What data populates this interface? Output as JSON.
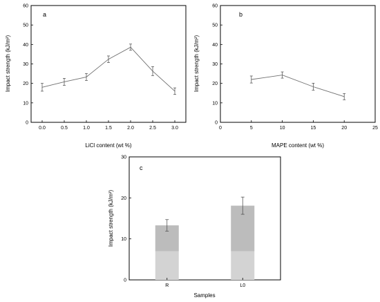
{
  "chart_data": [
    {
      "panel": "a",
      "type": "line",
      "x": [
        0.0,
        0.5,
        1.0,
        1.5,
        2.0,
        2.5,
        3.0
      ],
      "values": [
        18.0,
        20.8,
        23.3,
        32.4,
        38.6,
        26.3,
        16.0
      ],
      "errors": [
        2.0,
        1.8,
        1.8,
        1.7,
        1.6,
        2.3,
        1.7
      ],
      "xlabel": "LiCl content (wt %)",
      "ylabel": "Impact strength (kJ/m²)",
      "xlim": [
        -0.25,
        3.25
      ],
      "ylim": [
        0,
        60
      ],
      "xticks": [
        0.0,
        0.5,
        1.0,
        1.5,
        2.0,
        2.5,
        3.0
      ],
      "xtick_labels": [
        "0.0",
        "0.5",
        "1.0",
        "1.5",
        "2.0",
        "2.5",
        "3.0"
      ],
      "yticks": [
        0,
        10,
        20,
        30,
        40,
        50,
        60
      ],
      "ytick_labels": [
        "0",
        "10",
        "20",
        "30",
        "40",
        "50",
        "60"
      ],
      "grid": false,
      "color": "#6f6f6f"
    },
    {
      "panel": "b",
      "type": "line",
      "x": [
        5,
        10,
        15,
        20
      ],
      "values": [
        22.0,
        24.3,
        18.3,
        13.2
      ],
      "errors": [
        1.8,
        1.6,
        1.8,
        1.6
      ],
      "xlabel": "MAPE content (wt %)",
      "ylabel": "Impact strength (kJ/m²)",
      "xlim": [
        0,
        25
      ],
      "ylim": [
        0,
        60
      ],
      "xticks": [
        0,
        5,
        10,
        15,
        20,
        25
      ],
      "xtick_labels": [
        "0",
        "5",
        "10",
        "15",
        "20",
        "25"
      ],
      "yticks": [
        0,
        10,
        20,
        30,
        40,
        50,
        60
      ],
      "ytick_labels": [
        "0",
        "10",
        "20",
        "30",
        "40",
        "50",
        "60"
      ],
      "grid": false,
      "color": "#6f6f6f"
    },
    {
      "panel": "c",
      "type": "bar",
      "categories": [
        "R",
        "L0"
      ],
      "values": [
        13.3,
        18.1
      ],
      "errors": [
        1.4,
        2.1
      ],
      "lower_segment": [
        7.0,
        7.0
      ],
      "xlabel": "Samples",
      "ylabel": "Impact strength (kJ/m²)",
      "ylim": [
        0,
        30
      ],
      "yticks": [
        0,
        10,
        20,
        30
      ],
      "ytick_labels": [
        "0",
        "10",
        "20",
        "30"
      ],
      "grid": false,
      "colors": {
        "upper": "#bcbcbc",
        "lower": "#d3d3d3"
      }
    }
  ]
}
